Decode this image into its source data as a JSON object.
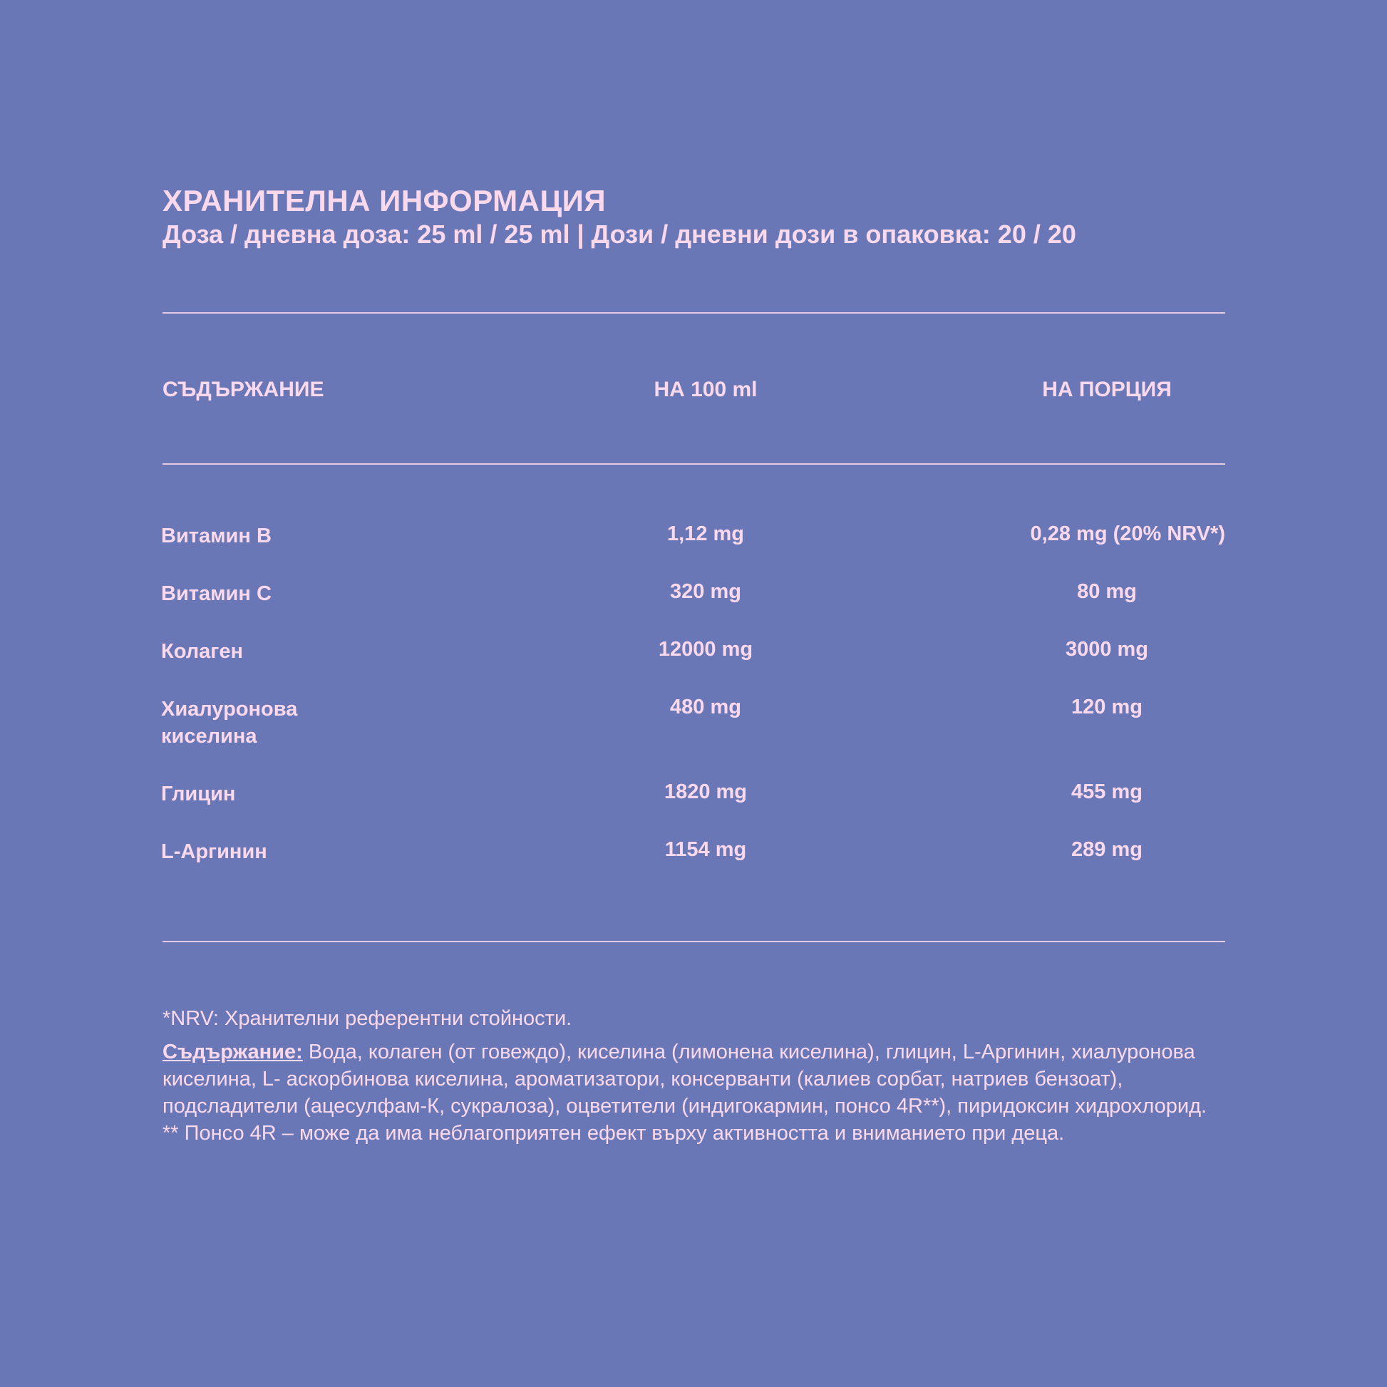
{
  "colors": {
    "background": "#6a77b6",
    "text": "#fbd9ec"
  },
  "title": "ХРАНИТЕЛНА ИНФОРМАЦИЯ",
  "subtitle": "Доза / дневна доза: 25 ml / 25 ml  | Дози / дневни дози в опаковка: 20 / 20",
  "table": {
    "headers": [
      "СЪДЪРЖАНИЕ",
      "НА 100 ml",
      "НА ПОРЦИЯ"
    ],
    "rows": [
      {
        "name": "Витамин B",
        "per100": "1,12 mg",
        "portion": "0,28 mg (20% NRV*)"
      },
      {
        "name": "Витамин C",
        "per100": "320 mg",
        "portion": "80 mg"
      },
      {
        "name": "Колаген",
        "per100": "12000 mg",
        "portion": "3000 mg"
      },
      {
        "name": "Хиалуронова киселина",
        "per100": "480 mg",
        "portion": "120 mg"
      },
      {
        "name": "Глицин",
        "per100": "1820 mg",
        "portion": "455 mg"
      },
      {
        "name": "L-Аргинин",
        "per100": "1154 mg",
        "portion": "289 mg"
      }
    ]
  },
  "footnotes": {
    "nrv": "*NRV: Хранителни референтни стойности.",
    "ingredients_label": "Съдържание:",
    "ingredients": " Вода, колаген (от говеждо), киселина (лимонена киселина), глицин, L-Аргинин, хиалуронова киселина, L- аскорбинова киселина, ароматизатори, консерванти (калиев сорбат, натриев бензоат), подсладители (ацесулфам-К, сукралоза), оцветители (индигокармин, понсо 4R**), пиридоксин хидрохлорид.",
    "warning": "** Понсо 4R – може да има неблагоприятен ефект върху активността и вниманието при деца."
  }
}
